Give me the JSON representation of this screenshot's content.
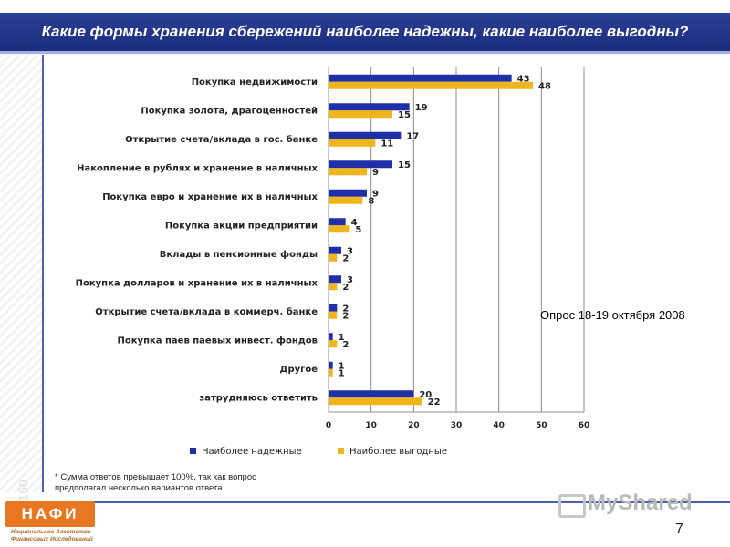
{
  "header": {
    "title": "Какие формы хранения сбережений наиболее надежны, какие наиболее выгодны?"
  },
  "survey_note": "Опрос 18-19 октября 2008",
  "footnote": {
    "line1": "* Сумма ответов превышает  100%, так как вопрос",
    "line2": "предполагал несколько вариантов ответа"
  },
  "page_number": "7",
  "logo": {
    "mark": "НАФИ",
    "caption_line1": "Национальное Агентство",
    "caption_line2": "Финансовых Исследований"
  },
  "watermark": "MyShared",
  "left_strip_number": "150",
  "colors": {
    "series1": "#1f2fa8",
    "series2": "#f0b41c",
    "title_bg": "#22348a",
    "grid": "#8c8c8c"
  },
  "chart_data": {
    "type": "bar",
    "orientation": "horizontal",
    "categories": [
      "Покупка недвижимости",
      "Покупка золота, драгоценностей",
      "Открытие счета/вклада в гос. банке",
      "Накопление в рублях и хранение в наличных",
      "Покупка евро и хранение их в наличных",
      "Покупка акций предприятий",
      "Вклады в пенсионные фонды",
      "Покупка долларов и хранение их в наличных",
      "Открытие счета/вклада в коммерч. банке",
      "Покупка паев паевых инвест. фондов",
      "Другое",
      "затрудняюсь ответить"
    ],
    "series": [
      {
        "name": "Наиболее надежные",
        "values": [
          43,
          19,
          17,
          15,
          9,
          4,
          3,
          3,
          2,
          1,
          1,
          20
        ]
      },
      {
        "name": "Наиболее выгодные",
        "values": [
          48,
          15,
          11,
          9,
          8,
          5,
          2,
          2,
          2,
          2,
          1,
          22
        ]
      }
    ],
    "xlim": [
      0,
      60
    ],
    "xticks": [
      0,
      10,
      20,
      30,
      40,
      50,
      60
    ],
    "grid": true,
    "legend": "bottom"
  }
}
